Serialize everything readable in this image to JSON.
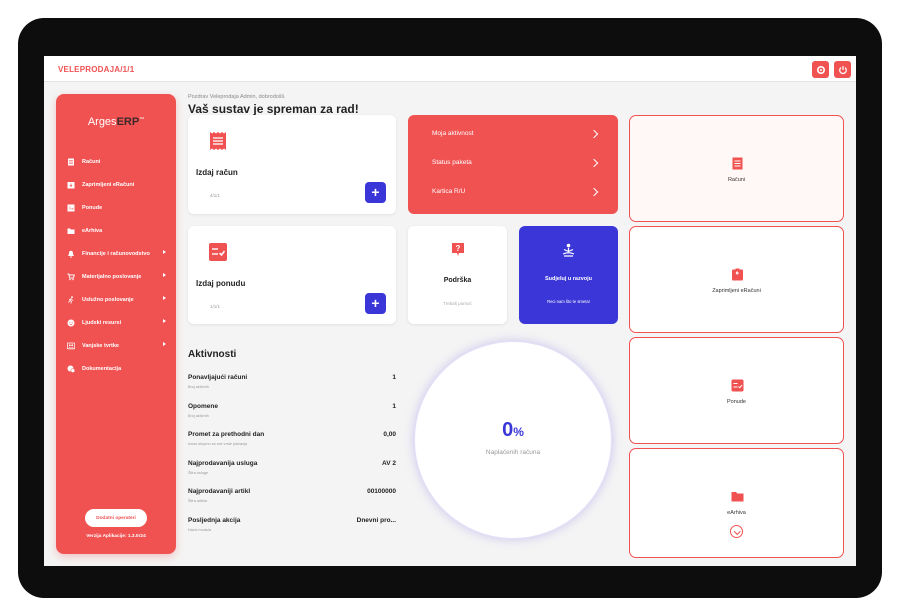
{
  "topbar": {
    "breadcrumb": "VELEPRODAJA/1/1"
  },
  "sidebar": {
    "logo_main": "Arges",
    "logo_accent": "ERP",
    "logo_tm": "™",
    "items": [
      {
        "label": "Računi",
        "icon": "receipt-icon",
        "submenu": false
      },
      {
        "label": "Zaprimljeni eRačuni",
        "icon": "inbox-icon",
        "submenu": false
      },
      {
        "label": "Ponude",
        "icon": "checklist-icon",
        "submenu": false
      },
      {
        "label": "eArhiva",
        "icon": "folder-icon",
        "submenu": false
      },
      {
        "label": "Financije i računovodstvo",
        "icon": "bell-icon",
        "submenu": true
      },
      {
        "label": "Materijalno poslovanje",
        "icon": "cart-icon",
        "submenu": true
      },
      {
        "label": "Uslužno poslovanje",
        "icon": "runner-icon",
        "submenu": true
      },
      {
        "label": "Ljudski resursi",
        "icon": "smile-icon",
        "submenu": true
      },
      {
        "label": "Vanjske tvrtke",
        "icon": "people-icon",
        "submenu": true
      },
      {
        "label": "Dokumentacija",
        "icon": "chat-icon",
        "submenu": false
      }
    ],
    "add_operator": "Dodatni operateri",
    "version": "Verzija Aplikacije: 1.3.0r24"
  },
  "header": {
    "greeting": "Pozdrav Veleprodaja Admin, dobrodošli.",
    "title": "Vaš sustav je spreman za rad!"
  },
  "cards": {
    "invoice": {
      "title": "Izdaj račun",
      "number": "4/1/1",
      "plus": "+"
    },
    "offer": {
      "title": "Izdaj ponudu",
      "number": "1/1/1",
      "plus": "+"
    }
  },
  "red_panel": {
    "items": [
      "Moja aktivnost",
      "Status paketa",
      "Kartica R/U"
    ]
  },
  "support": {
    "title": "Podrška",
    "sub": "Trebaš pomoć"
  },
  "develop": {
    "title": "Sudjeluj u razvoju",
    "sub": "Reci nam što te smeta!"
  },
  "activities": {
    "title": "Aktivnosti",
    "rows": [
      {
        "label": "Ponavljajući računi",
        "sub": "Broj aktivnih",
        "value": "1"
      },
      {
        "label": "Opomene",
        "sub": "Broj aktivnih",
        "value": "1"
      },
      {
        "label": "Promet za prethodni dan",
        "sub": "Iznos ukupno za sve vrste plaćanja",
        "value": "0,00"
      },
      {
        "label": "Najprodavanija usluga",
        "sub": "Šifra usluge",
        "value": "AV 2"
      },
      {
        "label": "Najprodavaniji artikl",
        "sub": "Šifra artikla",
        "value": "00100000"
      },
      {
        "label": "Posljednja akcija",
        "sub": "Naziv modula",
        "value": "Dnevni pro..."
      }
    ]
  },
  "gauge": {
    "value": "0",
    "unit": "%",
    "label": "Naplaćenih računa"
  },
  "quick_links": [
    {
      "label": "Računi",
      "icon": "receipt-icon"
    },
    {
      "label": "Zaprimljeni eRačuni",
      "icon": "inbox-icon"
    },
    {
      "label": "Ponude",
      "icon": "checklist-icon"
    },
    {
      "label": "eArhiva",
      "icon": "folder-icon"
    }
  ],
  "colors": {
    "accent": "#f05252",
    "primary": "#3a36d8"
  }
}
